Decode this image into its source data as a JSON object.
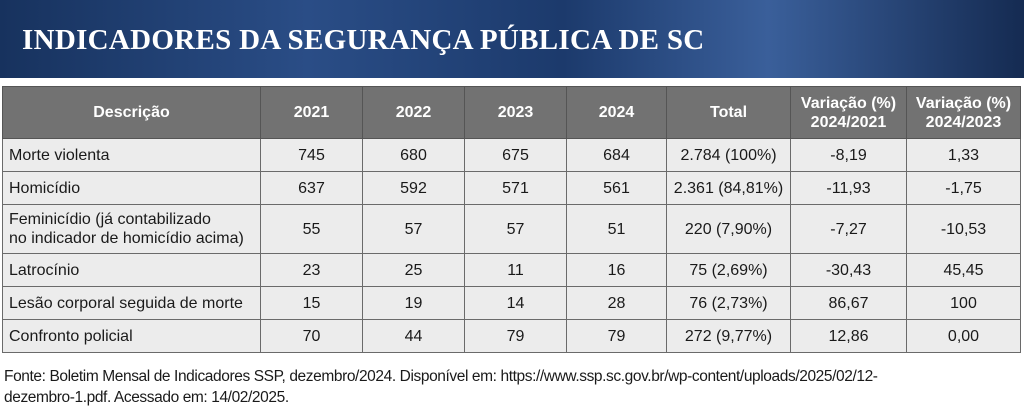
{
  "header": {
    "title": "INDICADORES DA SEGURANÇA PÚBLICA DE SC"
  },
  "table": {
    "columns": [
      "Descrição",
      "2021",
      "2022",
      "2023",
      "2024",
      "Total",
      "Variação (%)\n2024/2021",
      "Variação (%)\n2024/2023"
    ],
    "rows": [
      [
        "Morte violenta",
        "745",
        "680",
        "675",
        "684",
        "2.784 (100%)",
        "-8,19",
        "1,33"
      ],
      [
        "Homicídio",
        "637",
        "592",
        "571",
        "561",
        "2.361 (84,81%)",
        "-11,93",
        "-1,75"
      ],
      [
        "Feminicídio (já contabilizado\nno indicador de homicídio acima)",
        "55",
        "57",
        "57",
        "51",
        "220 (7,90%)",
        "-7,27",
        "-10,53"
      ],
      [
        "Latrocínio",
        "23",
        "25",
        "11",
        "16",
        "75 (2,69%)",
        "-30,43",
        "45,45"
      ],
      [
        "Lesão corporal seguida de morte",
        "15",
        "19",
        "14",
        "28",
        "76 (2,73%)",
        "86,67",
        "100"
      ],
      [
        "Confronto policial",
        "70",
        "44",
        "79",
        "79",
        "272 (9,77%)",
        "12,86",
        "0,00"
      ]
    ]
  },
  "footer": {
    "source": "Fonte: Boletim Mensal de Indicadores SSP, dezembro/2024. Disponível em: https://www.ssp.sc.gov.br/wp-content/uploads/2025/02/12-\ndezembro-1.pdf. Acessado em: 14/02/2025."
  }
}
